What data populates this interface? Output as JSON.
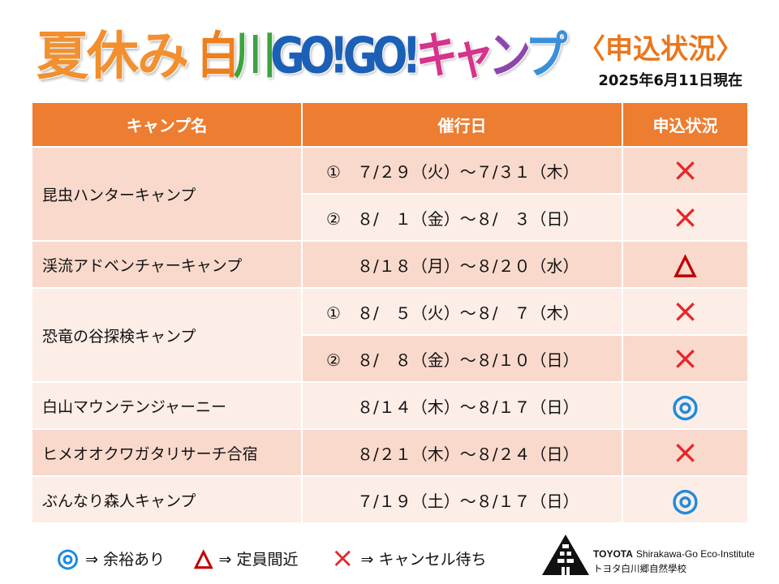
{
  "title": {
    "lead": "夏休み",
    "segments": [
      "白",
      "川",
      "GO!",
      "GO!",
      "キャ",
      "ン",
      "プ"
    ],
    "status_heading": "〈申込状況〉",
    "as_of": "2025年6月11日現在"
  },
  "table": {
    "headers": [
      "キャンプ名",
      "催行日",
      "申込状況"
    ],
    "rows": [
      {
        "camp": "昆虫ハンターキャンプ",
        "sessions": [
          {
            "marker": "①",
            "dates": "７/２９（火）～７/３１（木）",
            "status": "×"
          },
          {
            "marker": "②",
            "dates": "８/　１（金）～８/　３（日）",
            "status": "×"
          }
        ]
      },
      {
        "camp": "渓流アドベンチャーキャンプ",
        "sessions": [
          {
            "dates": "８/１８（月）～８/２０（水）",
            "status": "△"
          }
        ]
      },
      {
        "camp": "恐竜の谷探検キャンプ",
        "sessions": [
          {
            "marker": "①",
            "dates": "８/　５（火）～８/　７（木）",
            "status": "×"
          },
          {
            "marker": "②",
            "dates": "８/　８（金）～８/１０（日）",
            "status": "×"
          }
        ]
      },
      {
        "camp": "白山マウンテンジャーニー",
        "sessions": [
          {
            "dates": "８/１４（木）～８/１７（日）",
            "status": "◎"
          }
        ]
      },
      {
        "camp": "ヒメオオクワガタリサーチ合宿",
        "sessions": [
          {
            "dates": "８/２１（木）～８/２４（日）",
            "status": "×"
          }
        ]
      },
      {
        "camp": "ぶんなり森人キャンプ",
        "sessions": [
          {
            "dates": "７/１９（土）～８/１７（日）",
            "status": "◎"
          }
        ]
      }
    ]
  },
  "legend": [
    {
      "symbol": "◎",
      "text": "⇒ 余裕あり"
    },
    {
      "symbol": "△",
      "text": "⇒ 定員間近"
    },
    {
      "symbol": "×",
      "text": "⇒ キャンセル待ち"
    }
  ],
  "logo": {
    "icon": "gassho-house-icon",
    "brand": "TOYOTA",
    "name_en": "Shirakawa-Go Eco-Institute",
    "name_ja": "トヨタ白川郷自然學校"
  },
  "colors": {
    "accent": "#ED7D31",
    "band_dark": "#F9D9CC",
    "band_light": "#FCEDE6",
    "title_orange": "#F28F2E",
    "title_shiro": "#EE7F1F",
    "title_kawa": "#3DA33F",
    "title_go": "#1C5FB6",
    "title_kya": "#D6338B",
    "title_n": "#8C46AE",
    "title_pu": "#3A8FDA",
    "heading_orange": "#E9771F",
    "cross_red": "#E6262B",
    "triangle_red": "#C00000",
    "double_circle_blue": "#1E8BDD",
    "logo_black": "#111111"
  }
}
